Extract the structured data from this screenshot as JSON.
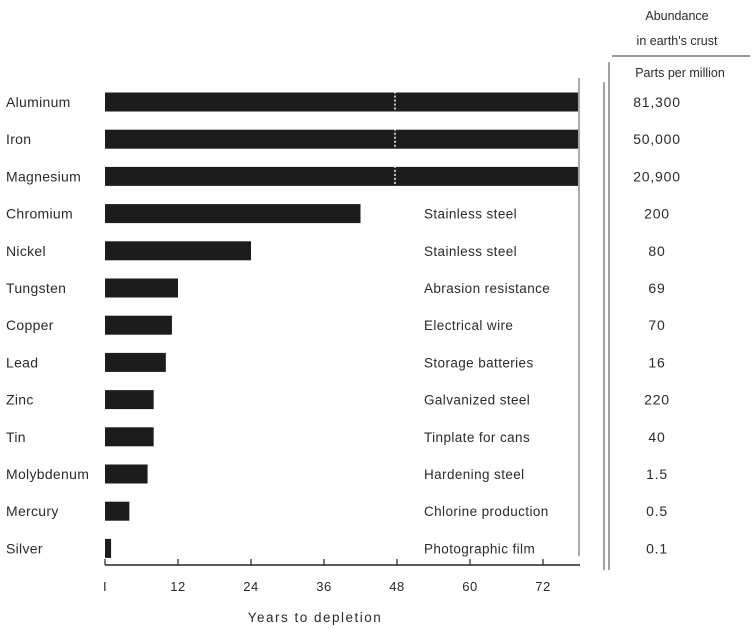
{
  "chart_data": {
    "type": "bar",
    "orientation": "horizontal",
    "title": "",
    "xlabel": "Years to depletion",
    "ylabel": "",
    "xlim": [
      0,
      78
    ],
    "xticks": [
      0,
      12,
      24,
      36,
      48,
      60,
      72
    ],
    "tick_labels": [
      "I",
      "12",
      "24",
      "36",
      "48",
      "60",
      "72"
    ],
    "grid": false,
    "categories": [
      "Aluminum",
      "Iron",
      "Magnesium",
      "Chromium",
      "Nickel",
      "Tungsten",
      "Copper",
      "Lead",
      "Zinc",
      "Tin",
      "Molybdenum",
      "Mercury",
      "Silver"
    ],
    "values": [
      78,
      78,
      78,
      42,
      24,
      12,
      11,
      10,
      8,
      8,
      7,
      4,
      1
    ],
    "exceeds_axis": [
      true,
      true,
      true,
      false,
      false,
      false,
      false,
      false,
      false,
      false,
      false,
      false,
      false
    ],
    "uses": [
      "",
      "",
      "",
      "Stainless steel",
      "Stainless steel",
      "Abrasion resistance",
      "Electrical wire",
      "Storage batteries",
      "Galvanized steel",
      "Tinplate for cans",
      "Hardening steel",
      "Chlorine production",
      "Photographic film"
    ],
    "abundance_header": [
      "Abundance",
      "in earth's crust"
    ],
    "abundance_unit": "Parts per million",
    "abundance_labels": [
      "81,300",
      "50,000",
      "20,900",
      "200",
      "80",
      "69",
      "70",
      "16",
      "220",
      "40",
      "1.5",
      "0.5",
      "0.1"
    ],
    "bar_color": "#1c1c1c"
  }
}
